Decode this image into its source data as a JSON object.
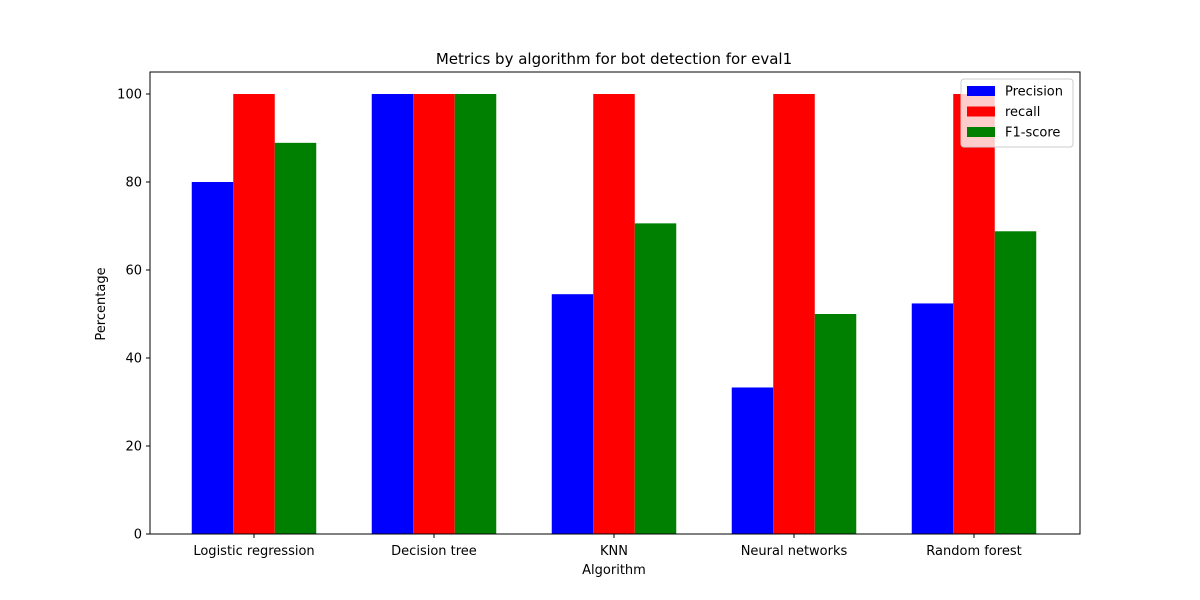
{
  "chart_data": {
    "type": "bar",
    "title": "Metrics by algorithm for bot detection for eval1",
    "xlabel": "Algorithm",
    "ylabel": "Percentage",
    "categories": [
      "Logistic regression",
      "Decision tree",
      "KNN",
      "Neural networks",
      "Random forest"
    ],
    "series": [
      {
        "name": "Precision",
        "color": "#0000ff",
        "values": [
          80,
          100,
          54.5,
          33.3,
          52.4
        ]
      },
      {
        "name": "recall",
        "color": "#ff0000",
        "values": [
          100,
          100,
          100,
          100,
          100
        ]
      },
      {
        "name": "F1-score",
        "color": "#008000",
        "values": [
          88.9,
          100,
          70.6,
          50,
          68.8
        ]
      }
    ],
    "ylim": [
      0,
      105
    ],
    "yticks": [
      0,
      20,
      40,
      60,
      80,
      100
    ],
    "grid": false,
    "legend_position": "top-right"
  }
}
